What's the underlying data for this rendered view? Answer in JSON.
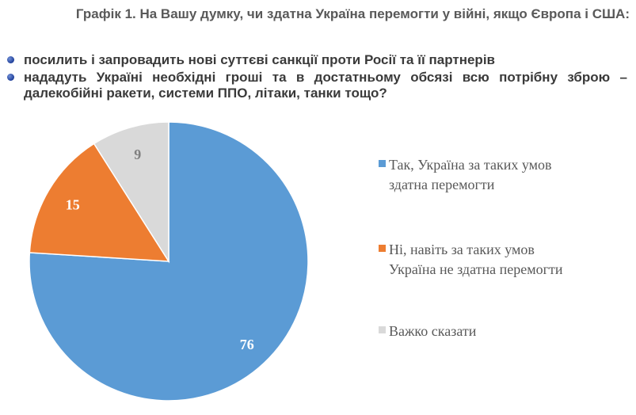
{
  "title": "Графік 1. На Вашу думку, чи здатна Україна перемогти у війні, якщо Європа і США:",
  "bullets": [
    "посилить і запровадить нові суттєві санкції проти Росії та її партнерів",
    "нададуть Україні необхідні гроші та в достатньому обсязі всю потрібну зброю – далекобійні ракети, системи ППО, літаки, танки тощо?"
  ],
  "chart_data": {
    "type": "pie",
    "slices": [
      {
        "label": "Так, Україна за таких умов здатна перемогти",
        "legend_lines": [
          "Так, Україна за таких умов",
          "здатна перемогти"
        ],
        "value": 76,
        "color": "#5b9bd5",
        "label_color": "#ffffff"
      },
      {
        "label": "Ні, навіть за таких умов Україна не здатна перемогти",
        "legend_lines": [
          "Ні, навіть за таких умов",
          "Україна не здатна перемогти"
        ],
        "value": 15,
        "color": "#ed7d31",
        "label_color": "#ffffff"
      },
      {
        "label": "Важко сказати",
        "legend_lines": [
          "Важко сказати"
        ],
        "value": 9,
        "color": "#d9d9d9",
        "label_color": "#7f7f7f"
      }
    ],
    "start_angle_deg": 0,
    "direction": "clockwise"
  }
}
